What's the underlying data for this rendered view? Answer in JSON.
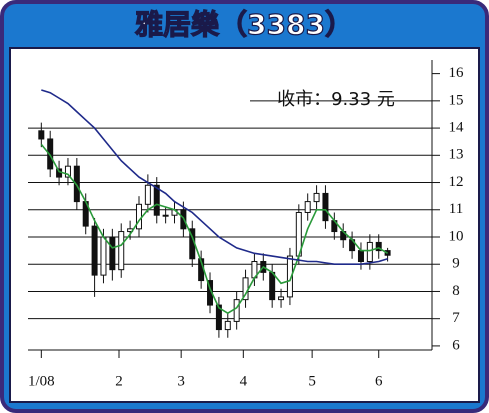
{
  "chart_data": {
    "type": "candlestick",
    "title": "雅居樂（3383）",
    "annotation": "收市：9.33 元",
    "x": [
      0,
      4,
      8,
      12,
      16,
      20,
      24,
      28,
      32,
      36,
      40,
      44,
      48,
      52,
      56,
      60,
      64,
      68,
      72,
      76,
      80,
      84,
      88,
      92,
      96,
      100,
      104,
      108,
      112,
      116,
      120,
      124,
      128,
      132,
      136,
      140,
      144,
      148,
      152,
      156
    ],
    "open": [
      13.9,
      13.6,
      12.5,
      12.2,
      12.6,
      11.3,
      10.4,
      8.6,
      10.0,
      8.8,
      10.2,
      10.3,
      11.2,
      11.9,
      10.8,
      10.8,
      11.0,
      10.3,
      9.2,
      8.4,
      7.5,
      6.6,
      6.9,
      7.7,
      8.5,
      9.1,
      8.7,
      7.7,
      7.8,
      9.3,
      10.9,
      11.3,
      11.6,
      10.6,
      10.2,
      9.9,
      9.5,
      9.1,
      9.8,
      9.5
    ],
    "high": [
      14.2,
      13.9,
      12.8,
      12.9,
      12.9,
      11.6,
      10.7,
      10.3,
      10.3,
      10.5,
      10.6,
      11.5,
      12.3,
      12.2,
      11.1,
      11.3,
      11.3,
      10.6,
      9.5,
      8.7,
      7.8,
      7.2,
      8.0,
      8.8,
      9.4,
      9.4,
      9.0,
      8.1,
      9.6,
      11.2,
      11.6,
      11.9,
      11.9,
      10.9,
      10.5,
      10.2,
      9.8,
      10.1,
      10.1,
      9.6
    ],
    "low": [
      13.3,
      12.2,
      11.9,
      11.9,
      11.0,
      10.1,
      7.8,
      8.3,
      8.4,
      8.5,
      9.9,
      10.0,
      10.9,
      10.5,
      10.5,
      10.5,
      10.0,
      8.9,
      8.1,
      7.2,
      6.3,
      6.3,
      6.6,
      7.4,
      8.2,
      8.4,
      7.4,
      7.4,
      7.5,
      9.0,
      10.6,
      11.0,
      10.3,
      9.9,
      9.6,
      9.2,
      8.8,
      8.8,
      9.2,
      9.1
    ],
    "close": [
      13.6,
      12.5,
      12.2,
      12.6,
      11.3,
      10.4,
      8.6,
      10.0,
      8.8,
      10.2,
      10.3,
      11.2,
      11.9,
      10.8,
      10.8,
      11.0,
      10.3,
      9.2,
      8.4,
      7.5,
      6.6,
      6.9,
      7.7,
      8.5,
      9.1,
      8.7,
      7.7,
      7.8,
      9.3,
      10.9,
      11.3,
      11.6,
      10.6,
      10.2,
      9.9,
      9.5,
      9.1,
      9.8,
      9.5,
      9.33
    ],
    "series": [
      {
        "color": "#2a9a3a",
        "values": [
          13.4,
          13.0,
          12.4,
          12.3,
          11.9,
          11.3,
          10.6,
          10.0,
          9.6,
          9.7,
          10.1,
          10.6,
          11.0,
          11.2,
          11.1,
          11.0,
          10.7,
          10.0,
          9.1,
          8.1,
          7.4,
          7.2,
          7.4,
          7.9,
          8.5,
          8.9,
          8.7,
          8.3,
          8.4,
          9.3,
          10.3,
          11.0,
          11.0,
          10.6,
          10.2,
          9.9,
          9.5,
          9.5,
          9.6,
          9.4
        ]
      },
      {
        "color": "#1f2a8a",
        "values": [
          15.4,
          15.3,
          15.1,
          14.9,
          14.6,
          14.3,
          14.0,
          13.6,
          13.2,
          12.8,
          12.5,
          12.2,
          12.0,
          11.8,
          11.6,
          11.3,
          11.1,
          10.9,
          10.6,
          10.3,
          10.0,
          9.8,
          9.6,
          9.5,
          9.4,
          9.35,
          9.3,
          9.25,
          9.2,
          9.15,
          9.1,
          9.1,
          9.05,
          9.0,
          9.0,
          9.0,
          9.0,
          9.05,
          9.1,
          9.2
        ]
      }
    ],
    "xlim": [
      -6,
      176
    ],
    "xticks": [
      {
        "value": 0,
        "label": "1/08"
      },
      {
        "value": 35,
        "label": "2"
      },
      {
        "value": 63,
        "label": "3"
      },
      {
        "value": 91,
        "label": "4"
      },
      {
        "value": 122,
        "label": "5"
      },
      {
        "value": 152,
        "label": "6"
      }
    ],
    "ylim": [
      5.85,
      16.5
    ],
    "yticks": [
      6,
      7,
      8,
      9,
      10,
      11,
      12,
      13,
      14,
      15,
      16
    ],
    "grid": true
  }
}
